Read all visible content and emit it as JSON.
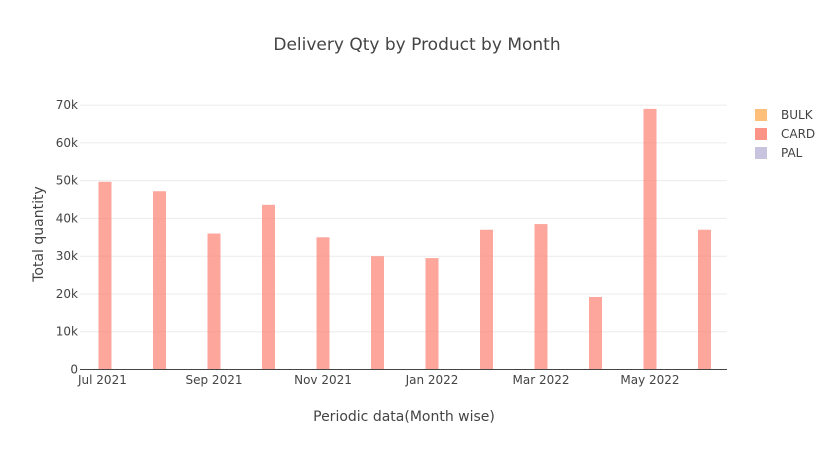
{
  "chart_data": {
    "type": "bar",
    "title": "Delivery Qty by Product by Month",
    "xlabel": "Periodic data(Month wise)",
    "ylabel": "Total quantity",
    "ylim": [
      0,
      74000
    ],
    "y_ticks": [
      0,
      10000,
      20000,
      30000,
      40000,
      50000,
      60000,
      70000
    ],
    "y_tick_labels": [
      "0",
      "10k",
      "20k",
      "30k",
      "40k",
      "50k",
      "60k",
      "70k"
    ],
    "x_tick_labels": [
      "Jul 2021",
      "Sep 2021",
      "Nov 2021",
      "Jan 2022",
      "Mar 2022",
      "May 2022"
    ],
    "categories": [
      "2021-07",
      "2021-08",
      "2021-09",
      "2021-10",
      "2021-11",
      "2021-12",
      "2022-01",
      "2022-02",
      "2022-03",
      "2022-04",
      "2022-05",
      "2022-06"
    ],
    "series": [
      {
        "name": "BULK",
        "color": "#fdb462",
        "values": [
          0,
          0,
          0,
          0,
          0,
          0,
          0,
          0,
          0,
          0,
          0,
          0
        ]
      },
      {
        "name": "CARD",
        "color": "#fb8072",
        "values": [
          49700,
          47200,
          36000,
          43600,
          35000,
          30000,
          29500,
          37000,
          38500,
          19200,
          69000,
          37000
        ]
      },
      {
        "name": "PAL",
        "color": "#bebada",
        "values": [
          0,
          0,
          0,
          0,
          0,
          0,
          0,
          0,
          0,
          0,
          0,
          0
        ]
      }
    ],
    "grid": true,
    "legend_position": "top-right"
  }
}
